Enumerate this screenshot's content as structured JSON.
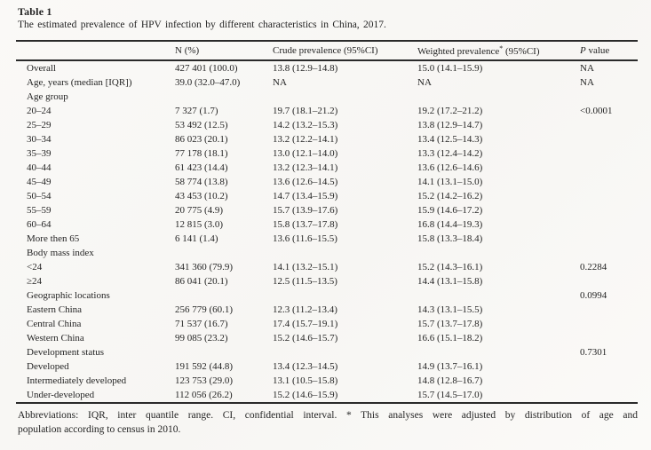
{
  "page": {
    "title": "Table 1",
    "caption": "The estimated prevalence of HPV infection by different characteristics in China, 2017.",
    "footnote_line1": "Abbreviations: IQR, inter quantile range. CI, confidential interval. * This analyses were adjusted by distribution of age and",
    "footnote_line2": "population according to census in 2010."
  },
  "colors": {
    "text": "#242424",
    "rule": "#2a2a2a",
    "background": "#f9f8f5"
  },
  "table": {
    "header": {
      "label": "",
      "n": "N (%)",
      "crude": "Crude prevalence (95%CI)",
      "weighted_prefix": "Weighted prevalence",
      "weighted_mark": "*",
      "weighted_suffix": " (95%CI)",
      "p_symbol": "P",
      "p_rest": " value"
    },
    "rows": [
      {
        "label": "Overall",
        "n": "427 401 (100.0)",
        "crude": "13.8 (12.9–14.8)",
        "weighted": "15.0 (14.1–15.9)",
        "p": "NA"
      },
      {
        "label": "Age, years (median [IQR])",
        "n": "39.0 (32.0–47.0)",
        "crude": "NA",
        "weighted": "NA",
        "p": "NA"
      },
      {
        "label": "Age group",
        "n": "",
        "crude": "",
        "weighted": "",
        "p": ""
      },
      {
        "label": "20–24",
        "n": "7 327 (1.7)",
        "crude": "19.7 (18.1–21.2)",
        "weighted": "19.2 (17.2–21.2)",
        "p": "<0.0001"
      },
      {
        "label": "25–29",
        "n": "53 492 (12.5)",
        "crude": "14.2 (13.2–15.3)",
        "weighted": "13.8 (12.9–14.7)",
        "p": ""
      },
      {
        "label": "30–34",
        "n": "86 023 (20.1)",
        "crude": "13.2 (12.2–14.1)",
        "weighted": "13.4 (12.5–14.3)",
        "p": ""
      },
      {
        "label": "35–39",
        "n": "77 178 (18.1)",
        "crude": "13.0 (12.1–14.0)",
        "weighted": "13.3 (12.4–14.2)",
        "p": ""
      },
      {
        "label": "40–44",
        "n": "61 423 (14.4)",
        "crude": "13.2 (12.3–14.1)",
        "weighted": "13.6 (12.6–14.6)",
        "p": ""
      },
      {
        "label": "45–49",
        "n": "58 774 (13.8)",
        "crude": "13.6 (12.6–14.5)",
        "weighted": "14.1 (13.1–15.0)",
        "p": ""
      },
      {
        "label": "50–54",
        "n": "43 453 (10.2)",
        "crude": "14.7 (13.4–15.9)",
        "weighted": "15.2 (14.2–16.2)",
        "p": ""
      },
      {
        "label": "55–59",
        "n": "20 775 (4.9)",
        "crude": "15.7 (13.9–17.6)",
        "weighted": "15.9 (14.6–17.2)",
        "p": ""
      },
      {
        "label": "60–64",
        "n": "12 815 (3.0)",
        "crude": "15.8 (13.7–17.8)",
        "weighted": "16.8 (14.4–19.3)",
        "p": ""
      },
      {
        "label": "More then 65",
        "n": "6 141 (1.4)",
        "crude": "13.6 (11.6–15.5)",
        "weighted": "15.8 (13.3–18.4)",
        "p": ""
      },
      {
        "label": "Body mass index",
        "n": "",
        "crude": "",
        "weighted": "",
        "p": ""
      },
      {
        "label": "<24",
        "n": "341 360 (79.9)",
        "crude": "14.1 (13.2–15.1)",
        "weighted": "15.2 (14.3–16.1)",
        "p": "0.2284"
      },
      {
        "label": "≥24",
        "n": "86 041 (20.1)",
        "crude": "12.5 (11.5–13.5)",
        "weighted": "14.4 (13.1–15.8)",
        "p": ""
      },
      {
        "label": "Geographic locations",
        "n": "",
        "crude": "",
        "weighted": "",
        "p": "0.0994"
      },
      {
        "label": "Eastern China",
        "n": "256 779 (60.1)",
        "crude": "12.3 (11.2–13.4)",
        "weighted": "14.3 (13.1–15.5)",
        "p": ""
      },
      {
        "label": "Central China",
        "n": "71 537 (16.7)",
        "crude": "17.4 (15.7–19.1)",
        "weighted": "15.7 (13.7–17.8)",
        "p": ""
      },
      {
        "label": "Western China",
        "n": "99 085 (23.2)",
        "crude": "15.2 (14.6–15.7)",
        "weighted": "16.6 (15.1–18.2)",
        "p": ""
      },
      {
        "label": "Development status",
        "n": "",
        "crude": "",
        "weighted": "",
        "p": "0.7301"
      },
      {
        "label": "Developed",
        "n": "191 592 (44.8)",
        "crude": "13.4 (12.3–14.5)",
        "weighted": "14.9 (13.7–16.1)",
        "p": ""
      },
      {
        "label": "Intermediately developed",
        "n": "123 753 (29.0)",
        "crude": "13.1 (10.5–15.8)",
        "weighted": "14.8 (12.8–16.7)",
        "p": ""
      },
      {
        "label": "Under-developed",
        "n": "112 056 (26.2)",
        "crude": "15.2 (14.6–15.9)",
        "weighted": "15.7 (14.5–17.0)",
        "p": ""
      }
    ]
  }
}
